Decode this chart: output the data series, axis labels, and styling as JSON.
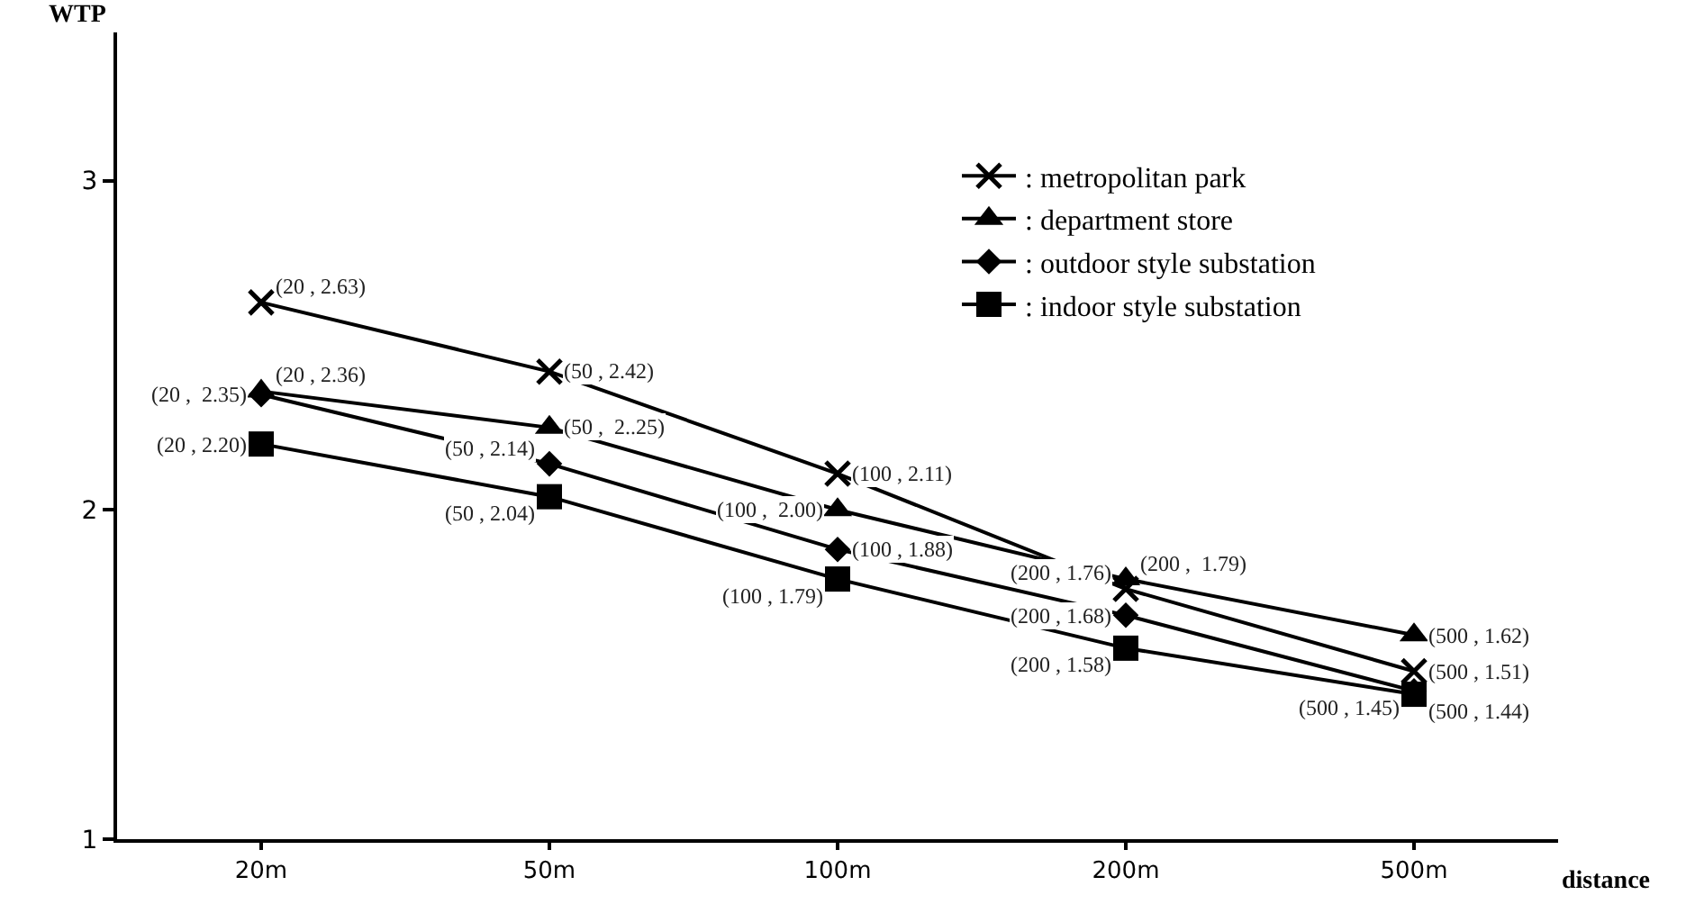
{
  "chart_data": {
    "type": "line",
    "xlabel": "distance",
    "ylabel": "WTP",
    "categories": [
      "20m",
      "50m",
      "100m",
      "200m",
      "500m"
    ],
    "series": [
      {
        "name": ": metropolitan park",
        "color": "#000000",
        "marker": "cross",
        "values": [
          2.63,
          2.42,
          2.11,
          1.76,
          1.51
        ],
        "value_labels": [
          "(20 , 2.63)",
          "(50 , 2.42)",
          "(100 , 2.11)",
          "(200 , 1.76)",
          "(500 , 1.51)"
        ]
      },
      {
        "name": ": department store",
        "color": "#000000",
        "marker": "triangle",
        "values": [
          2.36,
          2.25,
          2.0,
          1.79,
          1.62
        ],
        "value_labels": [
          "(20 , 2.36)",
          "(50 ,  2..25)",
          "(100 ,  2.00)",
          "(200 ,  1.79)",
          "(500 , 1.62)"
        ]
      },
      {
        "name": ": outdoor style substation",
        "color": "#000000",
        "marker": "diamond",
        "values": [
          2.35,
          2.14,
          1.88,
          1.68,
          1.45
        ],
        "value_labels": [
          "(20 ,  2.35)",
          "(50 , 2.14)",
          "(100 , 1.88)",
          "(200 , 1.68)",
          "(500 , 1.45)"
        ]
      },
      {
        "name": ": indoor style substation",
        "color": "#000000",
        "marker": "square",
        "values": [
          2.2,
          2.04,
          1.79,
          1.58,
          1.44
        ],
        "value_labels": [
          "(20 , 2.20)",
          "(50 , 2.04)",
          "(100 , 1.79)",
          "(200 , 1.58)",
          "(500 , 1.44)"
        ]
      }
    ],
    "ylim": [
      1,
      3.45
    ],
    "yticks": [
      1,
      2,
      3
    ],
    "grid": false,
    "legend": "top right",
    "line_style": "solid"
  }
}
